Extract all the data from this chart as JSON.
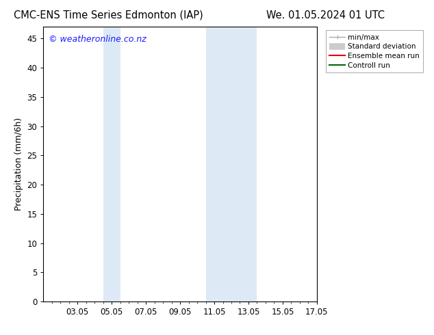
{
  "title_left": "CMC-ENS Time Series Edmonton (IAP)",
  "title_right": "We. 01.05.2024 01 UTC",
  "ylabel": "Precipitation (mm/6h)",
  "watermark": "© weatheronline.co.nz",
  "xmin": 1.05,
  "xmax": 17.05,
  "ymin": 0,
  "ymax": 47,
  "yticks": [
    0,
    5,
    10,
    15,
    20,
    25,
    30,
    35,
    40,
    45
  ],
  "xtick_labels": [
    "03.05",
    "05.05",
    "07.05",
    "09.05",
    "11.05",
    "13.05",
    "15.05",
    "17.05"
  ],
  "xtick_positions": [
    3.05,
    5.05,
    7.05,
    9.05,
    11.05,
    13.05,
    15.05,
    17.05
  ],
  "shaded_bands": [
    {
      "xstart": 4.55,
      "xend": 5.55
    },
    {
      "xstart": 10.55,
      "xend": 13.55
    }
  ],
  "shade_color": "#ddeaf5",
  "background_color": "#ffffff",
  "legend_entries": [
    {
      "label": "min/max",
      "color": "#aaaaaa",
      "lw": 1.0,
      "type": "minmax"
    },
    {
      "label": "Standard deviation",
      "color": "#cccccc",
      "lw": 7,
      "type": "band"
    },
    {
      "label": "Ensemble mean run",
      "color": "#dd0000",
      "lw": 1.5,
      "type": "line"
    },
    {
      "label": "Controll run",
      "color": "#006600",
      "lw": 1.5,
      "type": "line"
    }
  ],
  "watermark_color": "#1a1aff",
  "title_fontsize": 10.5,
  "tick_fontsize": 8.5,
  "ylabel_fontsize": 9,
  "watermark_fontsize": 9
}
